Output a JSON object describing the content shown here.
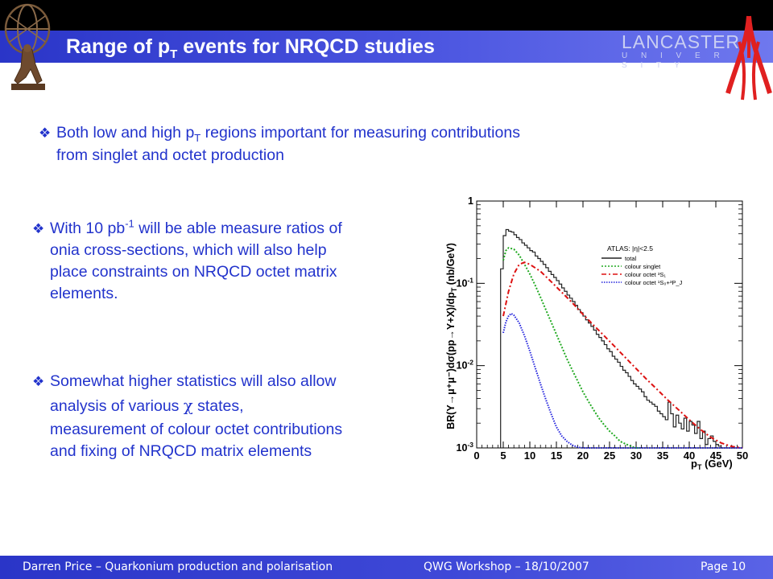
{
  "slide": {
    "title_main": "Range of p",
    "title_sub": "T",
    "title_rest": " events for NRQCD studies"
  },
  "logos": {
    "university_name": "LANCASTER",
    "university_sub": "U N I V E R S I T Y"
  },
  "bullets": [
    {
      "parts": [
        "Both low and high p",
        "T",
        " regions important for measuring contributions",
        "from singlet and octet production"
      ]
    },
    {
      "parts": [
        "With 10 pb",
        "-1",
        " will be able measure ratios of",
        "onia cross-sections, which will also help",
        "place constraints on NRQCD octet matrix",
        "elements."
      ]
    },
    {
      "parts": [
        "Somewhat higher statistics will also allow",
        "analysis of various ",
        "χ",
        " states,",
        "measurement of colour octet contributions",
        "and fixing of NRQCD matrix elements"
      ]
    }
  ],
  "footer": {
    "left": "Darren Price – Quarkonium production and polarisation",
    "center": "QWG Workshop – 18/10/2007",
    "right": "Page 10"
  },
  "colors": {
    "title_bar": "#3a44d6",
    "bullet_text": "#2233cc",
    "footer_bar": "#3a44d6"
  },
  "chart_data": {
    "type": "line",
    "xlabel": "p",
    "xlabel_sub": "T",
    "xlabel_unit": " (GeV)",
    "ylabel": "BR(Υ→μ⁺μ⁻)dσ(pp→Υ+X)/dp",
    "ylabel_sub": "T",
    "ylabel_unit": " (nb/GeV)",
    "xlim": [
      0,
      50
    ],
    "ylim": [
      0.001,
      1
    ],
    "yscale": "log",
    "x_ticks": [
      "0",
      "5",
      "10",
      "15",
      "20",
      "25",
      "30",
      "35",
      "40",
      "45",
      "50"
    ],
    "y_ticks": [
      {
        "base": "10",
        "exp": "-3",
        "value": 0.001
      },
      {
        "base": "10",
        "exp": "-2",
        "value": 0.01
      },
      {
        "base": "10",
        "exp": "-1",
        "value": 0.1
      },
      {
        "base": "1",
        "exp": "",
        "value": 1
      }
    ],
    "legend": {
      "title": "ATLAS: |η|<2.5",
      "placement": "top-right",
      "entries": [
        {
          "label": "total",
          "color": "#222222",
          "style": "solid"
        },
        {
          "label": "colour singlet",
          "color": "#22aa22",
          "style": "dotted"
        },
        {
          "label": "colour octet ³S₁",
          "color": "#dd1111",
          "style": "dashdot"
        },
        {
          "label": "colour octet ¹S₀+³P_J",
          "color": "#2222dd",
          "style": "dotted"
        }
      ]
    },
    "series": [
      {
        "name": "total",
        "color": "#222222",
        "x": [
          4.5,
          5,
          5.5,
          6,
          6.5,
          7,
          7.5,
          8,
          8.5,
          9,
          9.5,
          10,
          10.5,
          11,
          11.5,
          12,
          12.5,
          13,
          13.5,
          14,
          14.5,
          15,
          15.5,
          16,
          16.5,
          17,
          17.5,
          18,
          18.5,
          19,
          19.5,
          20,
          20.5,
          21,
          21.5,
          22,
          22.5,
          23,
          23.5,
          24,
          24.5,
          25,
          25.5,
          26,
          26.5,
          27,
          27.5,
          28,
          28.5,
          29,
          29.5,
          30,
          30.5,
          31,
          31.5,
          32,
          32.5,
          33,
          33.5,
          34,
          34.5,
          35,
          35.5,
          36,
          36.5,
          37,
          37.5,
          38,
          38.5,
          39,
          39.5,
          40,
          40.5,
          41,
          41.5,
          42,
          42.5,
          43,
          43.5,
          44,
          44.5,
          45,
          45.5,
          46,
          46.5,
          47,
          47.5,
          48,
          48.5,
          49,
          49.5
        ],
        "values": [
          0.15,
          0.38,
          0.45,
          0.43,
          0.42,
          0.39,
          0.36,
          0.34,
          0.31,
          0.29,
          0.27,
          0.25,
          0.24,
          0.215,
          0.2,
          0.185,
          0.17,
          0.155,
          0.14,
          0.128,
          0.118,
          0.108,
          0.098,
          0.088,
          0.08,
          0.072,
          0.066,
          0.06,
          0.054,
          0.048,
          0.044,
          0.04,
          0.036,
          0.033,
          0.03,
          0.027,
          0.024,
          0.022,
          0.02,
          0.018,
          0.016,
          0.0148,
          0.013,
          0.012,
          0.011,
          0.0098,
          0.0088,
          0.0082,
          0.0074,
          0.0066,
          0.006,
          0.0056,
          0.0052,
          0.0048,
          0.0042,
          0.0038,
          0.0036,
          0.0034,
          0.0032,
          0.0028,
          0.0026,
          0.0024,
          0.0022,
          0.0036,
          0.0026,
          0.0018,
          0.0025,
          0.002,
          0.0017,
          0.0023,
          0.0016,
          0.0021,
          0.0019,
          0.0015,
          0.0021,
          0.0013,
          0.0016,
          0.0011,
          0.0013,
          0.0014,
          0.0012,
          0.0011,
          0.00105,
          0.001,
          0.001,
          0.001,
          0.001,
          0.001,
          0.001,
          0.001,
          0.001
        ]
      },
      {
        "name": "colour singlet",
        "color": "#22aa22",
        "x": [
          5,
          5.5,
          6,
          7,
          8,
          9,
          10,
          11,
          12,
          13,
          14,
          15,
          16,
          17,
          18,
          19,
          20,
          21,
          22,
          23,
          24,
          25,
          26,
          27,
          28,
          29,
          30,
          31
        ],
        "values": [
          0.19,
          0.25,
          0.27,
          0.26,
          0.22,
          0.17,
          0.13,
          0.095,
          0.068,
          0.048,
          0.034,
          0.024,
          0.017,
          0.012,
          0.0088,
          0.0065,
          0.0048,
          0.0037,
          0.0029,
          0.0023,
          0.0019,
          0.0016,
          0.0014,
          0.0012,
          0.00112,
          0.00105,
          0.001,
          0.001
        ]
      },
      {
        "name": "colour octet 3S1",
        "color": "#dd1111",
        "x": [
          5,
          6,
          7,
          8,
          9,
          10,
          12,
          14,
          16,
          18,
          20,
          22,
          24,
          26,
          28,
          30,
          32,
          34,
          36,
          38,
          40,
          42,
          44,
          46,
          48,
          50
        ],
        "values": [
          0.04,
          0.08,
          0.13,
          0.17,
          0.18,
          0.17,
          0.14,
          0.105,
          0.078,
          0.058,
          0.042,
          0.031,
          0.023,
          0.017,
          0.0125,
          0.0092,
          0.0068,
          0.0051,
          0.0038,
          0.0029,
          0.0022,
          0.0017,
          0.00135,
          0.00115,
          0.00104,
          0.001
        ]
      },
      {
        "name": "colour octet 1S0+3PJ",
        "color": "#2222dd",
        "x": [
          5,
          5.5,
          6,
          6.5,
          7,
          8,
          9,
          10,
          11,
          12,
          13,
          14,
          15,
          16,
          17,
          18,
          19,
          20,
          21,
          22,
          50
        ],
        "values": [
          0.025,
          0.034,
          0.04,
          0.043,
          0.041,
          0.033,
          0.023,
          0.015,
          0.0095,
          0.006,
          0.0039,
          0.0026,
          0.0018,
          0.0014,
          0.0012,
          0.00108,
          0.00102,
          0.001,
          0.001,
          0.001,
          0.001
        ]
      }
    ]
  }
}
